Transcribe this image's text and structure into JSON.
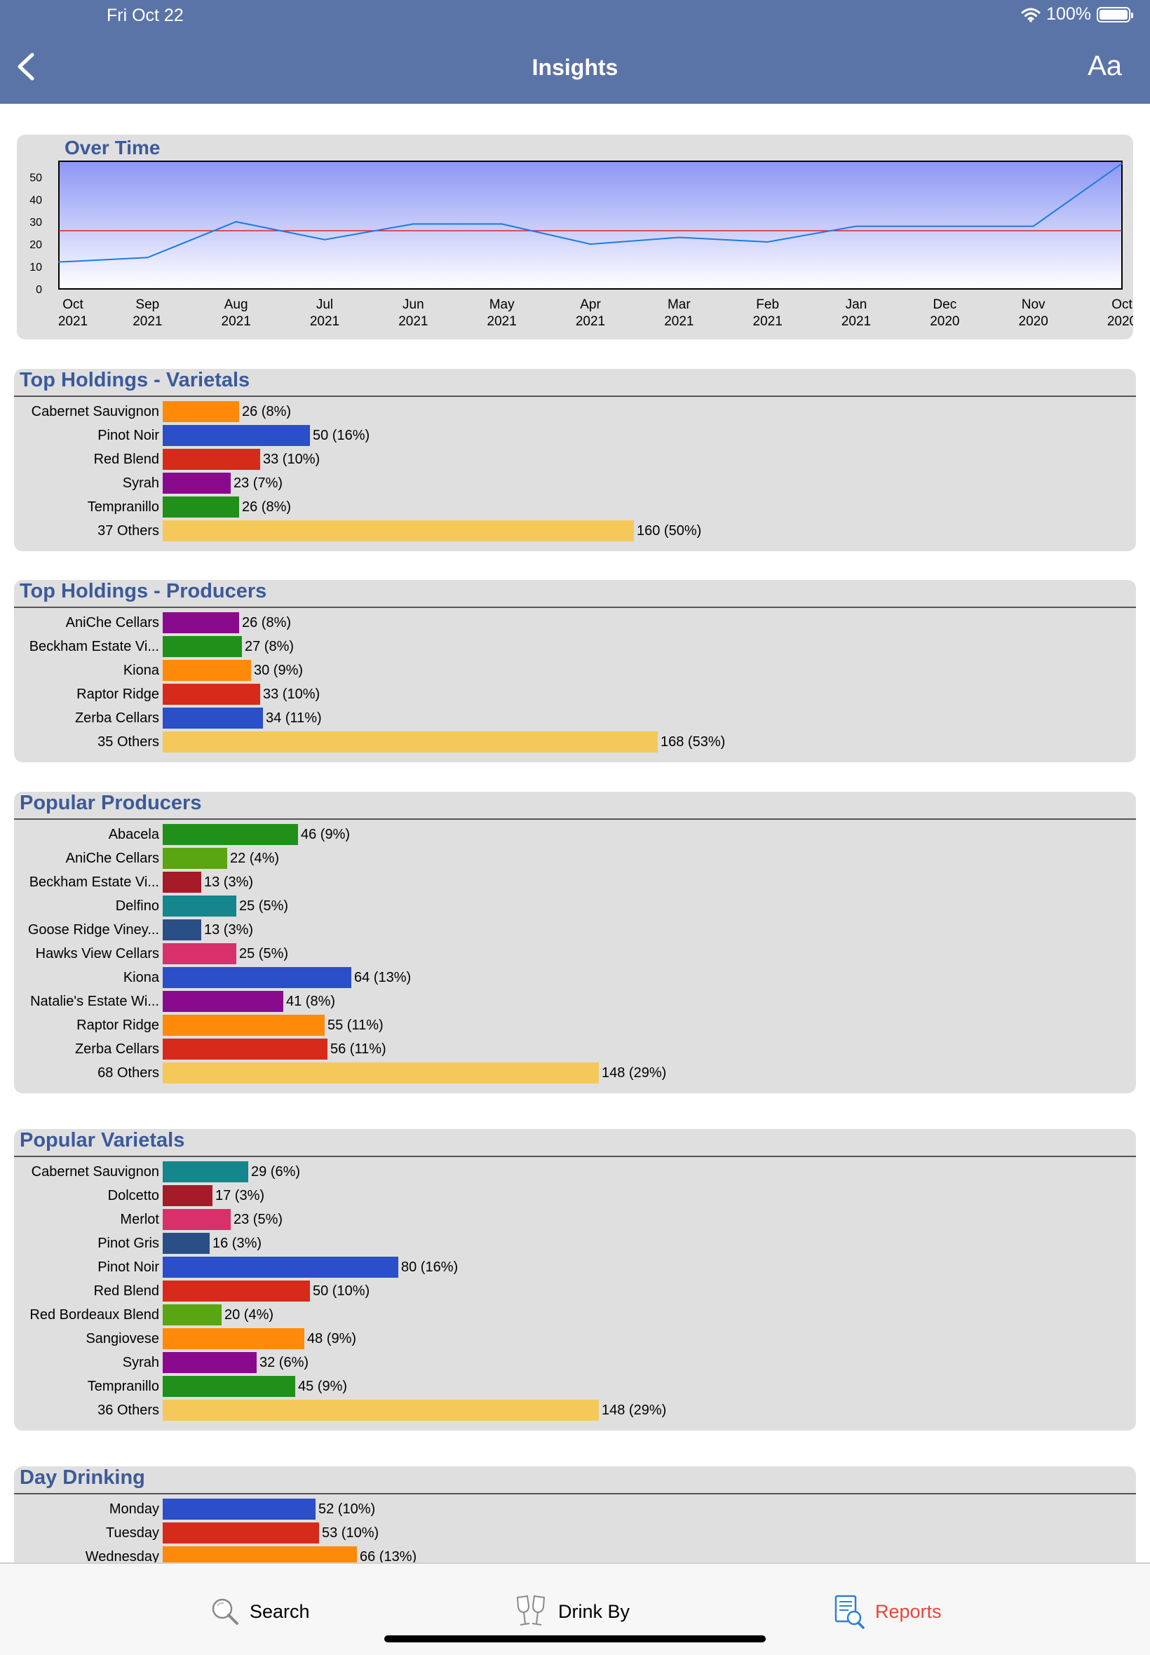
{
  "status": {
    "time": "Fri Oct 22",
    "battery": "100%",
    "battery_level": 1.0
  },
  "nav": {
    "title": "Insights",
    "font_button": "Aa"
  },
  "over_time": {
    "title": "Over Time",
    "chart_data": {
      "type": "area",
      "title": "Over Time",
      "x": [
        "Oct\n2021",
        "Sep\n2021",
        "Aug\n2021",
        "Jul\n2021",
        "Jun\n2021",
        "May\n2021",
        "Apr\n2021",
        "Mar\n2021",
        "Feb\n2021",
        "Jan\n2021",
        "Dec\n2020",
        "Nov\n2020",
        "Oct\n2020"
      ],
      "values": [
        12,
        14,
        30,
        22,
        29,
        29,
        20,
        23,
        21,
        28,
        28,
        28,
        56
      ],
      "average": 26,
      "yticks": [
        0,
        10,
        20,
        30,
        40,
        50
      ],
      "ylim": [
        0,
        57
      ],
      "colors": {
        "line": "#1e7be0",
        "average": "#e0202a",
        "fill_top": "#8c96f4",
        "fill_bottom": "#ffffff"
      }
    }
  },
  "sections": [
    {
      "id": "top-holdings-varietals",
      "title": "Top Holdings - Varietals",
      "chart_data": {
        "type": "bar",
        "categories": [
          "Cabernet Sauvignon",
          "Pinot Noir",
          "Red Blend",
          "Syrah",
          "Tempranillo",
          "37 Others"
        ],
        "values": [
          26,
          50,
          33,
          23,
          26,
          160
        ],
        "labels": [
          "26 (8%)",
          "50 (16%)",
          "33 (10%)",
          "23 (7%)",
          "26 (8%)",
          "160 (50%)"
        ],
        "colors": [
          "#ff8a0a",
          "#2a4fc8",
          "#d62a1a",
          "#8a0a8e",
          "#20901a",
          "#f5c85a"
        ]
      }
    },
    {
      "id": "top-holdings-producers",
      "title": "Top Holdings - Producers",
      "chart_data": {
        "type": "bar",
        "categories": [
          "AniChe Cellars",
          "Beckham Estate Vi...",
          "Kiona",
          "Raptor Ridge",
          "Zerba Cellars",
          "35 Others"
        ],
        "values": [
          26,
          27,
          30,
          33,
          34,
          168
        ],
        "labels": [
          "26 (8%)",
          "27 (8%)",
          "30 (9%)",
          "33 (10%)",
          "34 (11%)",
          "168 (53%)"
        ],
        "colors": [
          "#8a0a8e",
          "#20901a",
          "#ff8a0a",
          "#d62a1a",
          "#2a4fc8",
          "#f5c85a"
        ]
      }
    },
    {
      "id": "popular-producers",
      "title": "Popular Producers",
      "chart_data": {
        "type": "bar",
        "categories": [
          "Abacela",
          "AniChe Cellars",
          "Beckham Estate Vi...",
          "Delfino",
          "Goose Ridge Viney...",
          "Hawks View Cellars",
          "Kiona",
          "Natalie's Estate Wi...",
          "Raptor Ridge",
          "Zerba Cellars",
          "68 Others"
        ],
        "values": [
          46,
          22,
          13,
          25,
          13,
          25,
          64,
          41,
          55,
          56,
          148
        ],
        "labels": [
          "46 (9%)",
          "22 (4%)",
          "13 (3%)",
          "25 (5%)",
          "13 (3%)",
          "25 (5%)",
          "64 (13%)",
          "41 (8%)",
          "55 (11%)",
          "56 (11%)",
          "148 (29%)"
        ],
        "colors": [
          "#20901a",
          "#5aa512",
          "#a51c28",
          "#14868c",
          "#2a4f86",
          "#d8306a",
          "#2a4fc8",
          "#8a0a8e",
          "#ff8a0a",
          "#d62a1a",
          "#f5c85a"
        ]
      }
    },
    {
      "id": "popular-varietals",
      "title": "Popular Varietals",
      "chart_data": {
        "type": "bar",
        "categories": [
          "Cabernet Sauvignon",
          "Dolcetto",
          "Merlot",
          "Pinot Gris",
          "Pinot Noir",
          "Red Blend",
          "Red Bordeaux Blend",
          "Sangiovese",
          "Syrah",
          "Tempranillo",
          "36 Others"
        ],
        "values": [
          29,
          17,
          23,
          16,
          80,
          50,
          20,
          48,
          32,
          45,
          148
        ],
        "labels": [
          "29 (6%)",
          "17 (3%)",
          "23 (5%)",
          "16 (3%)",
          "80 (16%)",
          "50 (10%)",
          "20 (4%)",
          "48 (9%)",
          "32 (6%)",
          "45 (9%)",
          "148 (29%)"
        ],
        "colors": [
          "#14868c",
          "#a51c28",
          "#d8306a",
          "#2a4f86",
          "#2a4fc8",
          "#d62a1a",
          "#5aa512",
          "#ff8a0a",
          "#8a0a8e",
          "#20901a",
          "#f5c85a"
        ]
      }
    },
    {
      "id": "day-drinking",
      "title": "Day Drinking",
      "chart_data": {
        "type": "bar",
        "categories": [
          "Monday",
          "Tuesday",
          "Wednesday"
        ],
        "values": [
          52,
          53,
          66
        ],
        "labels": [
          "52 (10%)",
          "53 (10%)",
          "66 (13%)"
        ],
        "colors": [
          "#2a4fc8",
          "#d62a1a",
          "#ff8a0a"
        ]
      }
    }
  ],
  "tabs": [
    {
      "label": "Search",
      "icon": "magnifier-icon",
      "active": false
    },
    {
      "label": "Drink By",
      "icon": "wine-glasses-icon",
      "active": false
    },
    {
      "label": "Reports",
      "icon": "report-icon",
      "active": true
    }
  ],
  "colors": {
    "header": "#5b74a8",
    "accent": "#e8453c",
    "section_title": "#3c5a9a",
    "tab_icon_active": "#2d7fd8"
  }
}
